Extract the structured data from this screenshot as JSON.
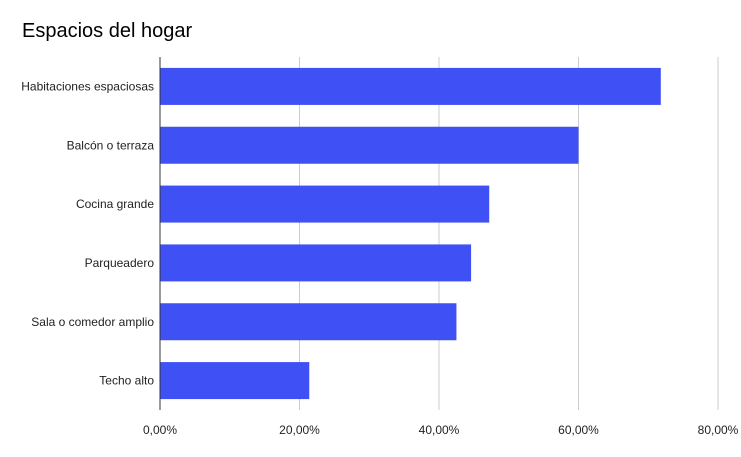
{
  "chart_data": {
    "type": "bar",
    "orientation": "horizontal",
    "title": "Espacios del hogar",
    "categories": [
      "Habitaciones espaciosas",
      "Balcón o terraza",
      "Cocina grande",
      "Parqueadero",
      "Sala o comedor amplio",
      "Techo alto"
    ],
    "values": [
      71.8,
      60.0,
      47.2,
      44.6,
      42.5,
      21.4
    ],
    "xlim": [
      0,
      80
    ],
    "ticks": [
      0,
      20,
      40,
      60,
      80
    ],
    "tick_labels": [
      "0,00%",
      "20,00%",
      "40,00%",
      "60,00%",
      "80,00%"
    ],
    "grid": true,
    "legend": "none",
    "bar_color": "#3f51f5"
  }
}
